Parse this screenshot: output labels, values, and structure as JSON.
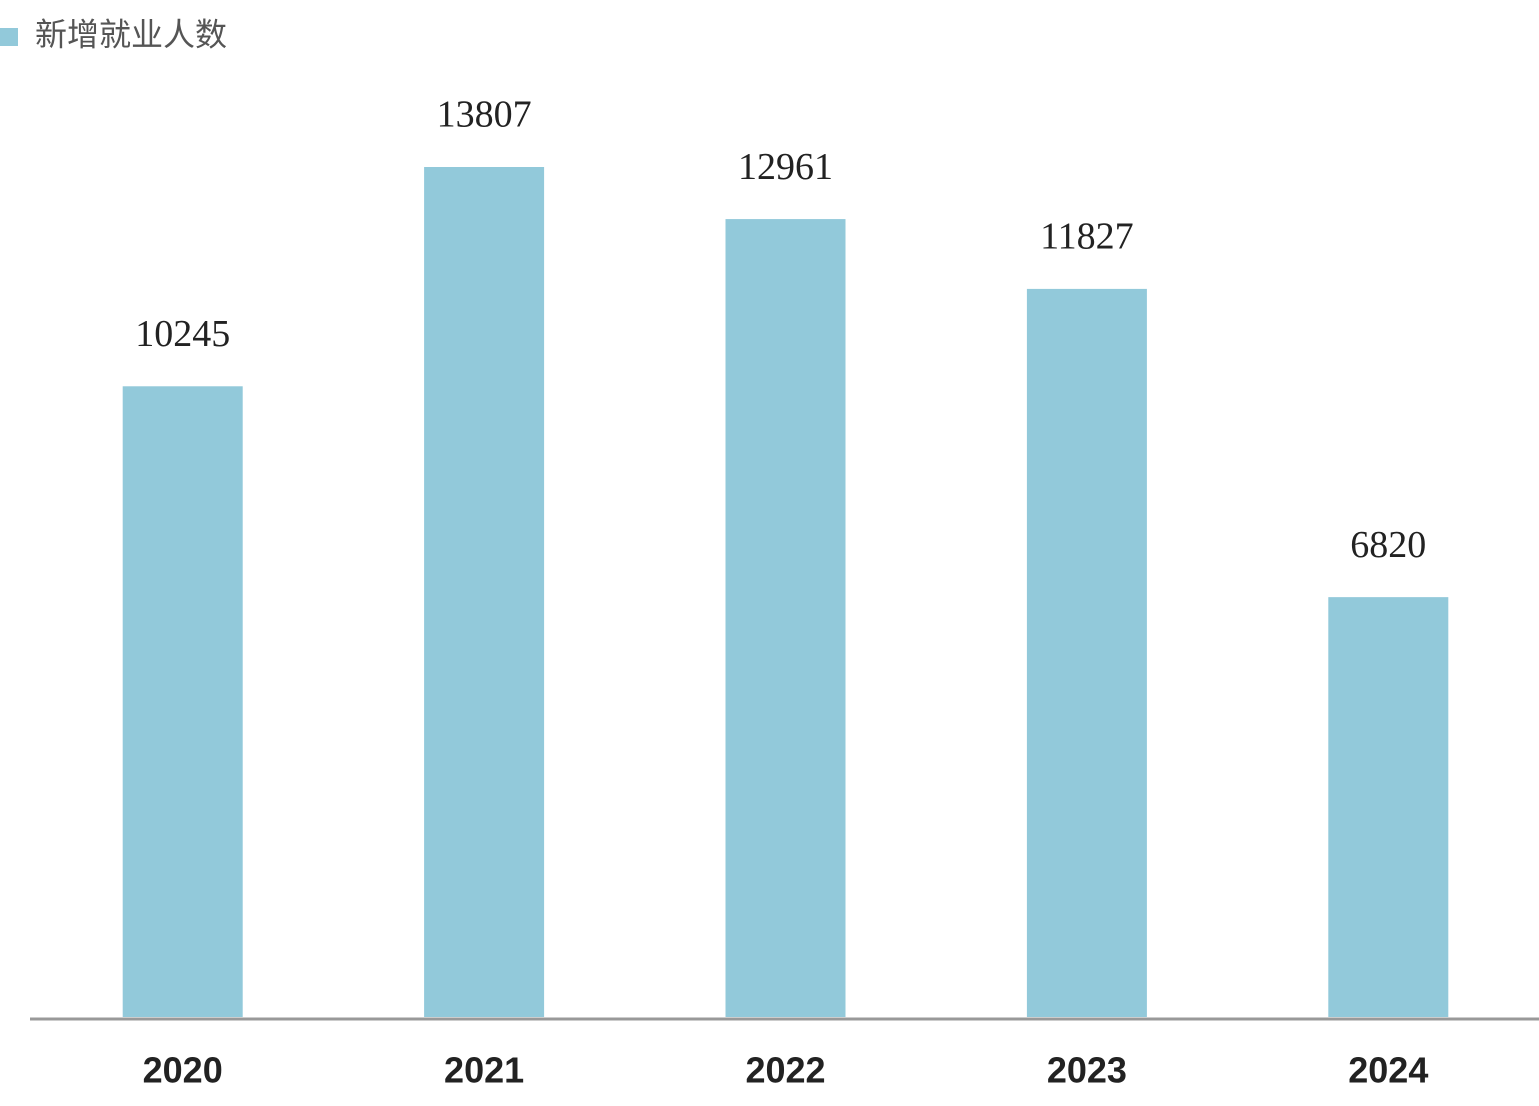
{
  "chart_data": {
    "type": "bar",
    "categories": [
      "2020",
      "2021",
      "2022",
      "2023",
      "2024"
    ],
    "series": [
      {
        "name": "新增就业人数",
        "color": "#92c9da",
        "values": [
          10245,
          13807,
          12961,
          11827,
          6820
        ]
      }
    ],
    "legend": "top-left"
  }
}
